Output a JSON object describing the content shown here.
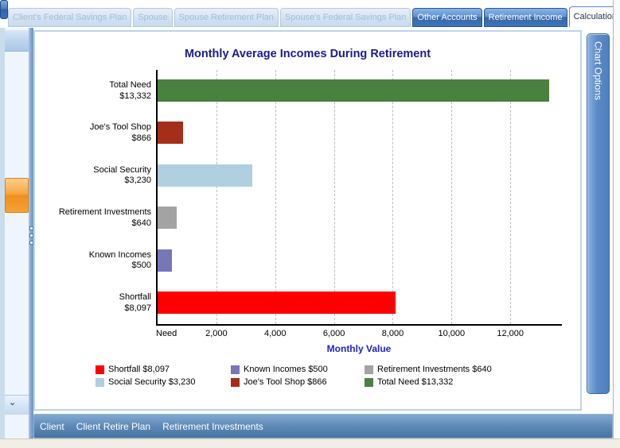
{
  "window": {
    "tabs": [
      {
        "label": "Client's Federal Savings Plan",
        "state": "disabled"
      },
      {
        "label": "Spouse",
        "state": "disabled"
      },
      {
        "label": "Spouse Retirement Plan",
        "state": "disabled"
      },
      {
        "label": "Spouse's Federal Savings Plan",
        "state": "disabled"
      },
      {
        "label": "Other Accounts",
        "state": "normal"
      },
      {
        "label": "Retirement Income",
        "state": "normal"
      },
      {
        "label": "Calculations",
        "state": "selected"
      }
    ],
    "side_tab": {
      "label": "Chart Options"
    },
    "breadcrumb": {
      "items": [
        "Client",
        "Client Retire Plan",
        "Retirement Investments"
      ]
    }
  },
  "chart_data": {
    "type": "bar",
    "orientation": "horizontal",
    "title": "Monthly Average Incomes During Retirement",
    "xlabel": "Monthly Value",
    "ylabel": "",
    "categories": [
      "Total Need",
      "Joe's Tool Shop",
      "Social Security",
      "Retirement Investments",
      "Known Incomes",
      "Shortfall"
    ],
    "value_labels": [
      "$13,332",
      "$866",
      "$3,230",
      "$640",
      "$500",
      "$8,097"
    ],
    "values": [
      13332,
      866,
      3230,
      640,
      500,
      8097
    ],
    "colors": [
      "#4a8040",
      "#a52e1a",
      "#b0cfe0",
      "#a3a3a3",
      "#7577b7",
      "#ff0000"
    ],
    "x_ticks": [
      {
        "label": "Need",
        "value": 0
      },
      {
        "label": "2,000",
        "value": 2000
      },
      {
        "label": "4,000",
        "value": 4000
      },
      {
        "label": "6,000",
        "value": 6000
      },
      {
        "label": "8,000",
        "value": 8000
      },
      {
        "label": "10,000",
        "value": 10000
      },
      {
        "label": "12,000",
        "value": 12000
      }
    ],
    "xlim": [
      0,
      13700
    ],
    "grid": "dashed-vertical",
    "legend_position": "bottom"
  },
  "legend": {
    "entries": [
      {
        "label": "Shortfall $8,097",
        "color": "#ff0000"
      },
      {
        "label": "Known Incomes $500",
        "color": "#7577b7"
      },
      {
        "label": "Retirement Investments $640",
        "color": "#a3a3a3"
      },
      {
        "label": "Social Security $3,230",
        "color": "#b0cfe0"
      },
      {
        "label": "Joe's Tool Shop $866",
        "color": "#a52e1a"
      },
      {
        "label": "Total Need $13,332",
        "color": "#4a8040"
      }
    ]
  }
}
